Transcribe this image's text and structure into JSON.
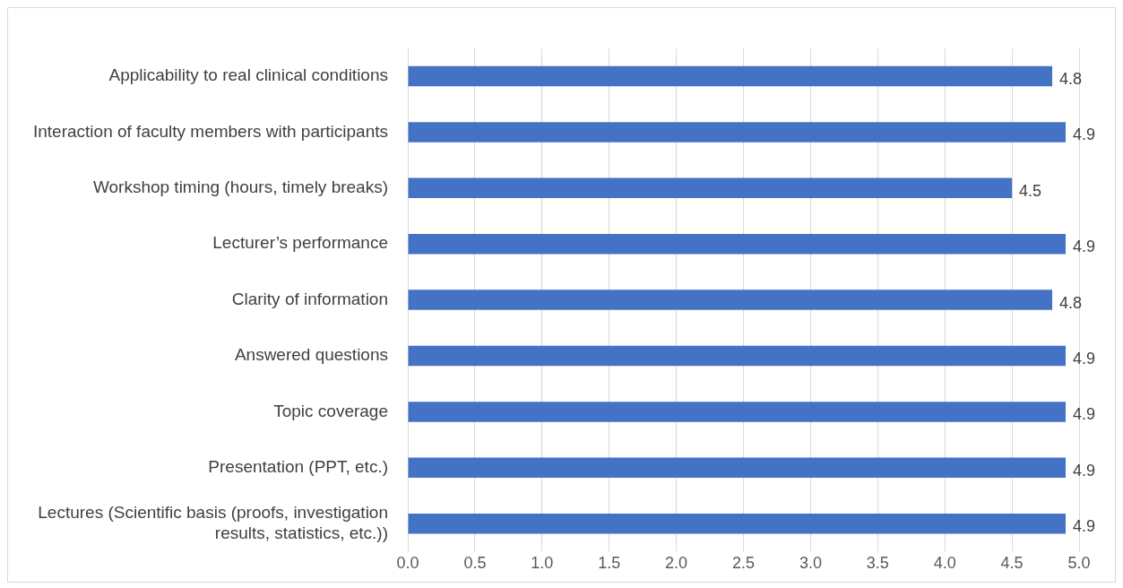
{
  "chart_data": {
    "type": "bar",
    "orientation": "horizontal",
    "categories": [
      "Applicability to real clinical conditions",
      "Interaction of faculty members with participants",
      "Workshop timing (hours, timely breaks)",
      "Lecturer’s performance",
      "Clarity of information",
      "Answered questions",
      "Topic coverage",
      "Presentation (PPT, etc.)",
      "Lectures (Scientific basis (proofs, investigation results, statistics, etc.))"
    ],
    "values": [
      4.8,
      4.9,
      4.5,
      4.9,
      4.8,
      4.9,
      4.9,
      4.9,
      4.9
    ],
    "color": "#4472c4",
    "xlim": [
      0,
      5
    ],
    "xticks": [
      {
        "value": 0,
        "label": "0.0"
      },
      {
        "value": 0.5,
        "label": "0.5"
      },
      {
        "value": 1,
        "label": "1.0"
      },
      {
        "value": 1.5,
        "label": "1.5"
      },
      {
        "value": 2,
        "label": "2.0"
      },
      {
        "value": 2.5,
        "label": "2.5"
      },
      {
        "value": 3,
        "label": "3.0"
      },
      {
        "value": 3.5,
        "label": "3.5"
      },
      {
        "value": 4,
        "label": "4.0"
      },
      {
        "value": 4.5,
        "label": "4.5"
      },
      {
        "value": 5,
        "label": "5.0"
      }
    ],
    "grid": "x",
    "data_labels": true
  }
}
